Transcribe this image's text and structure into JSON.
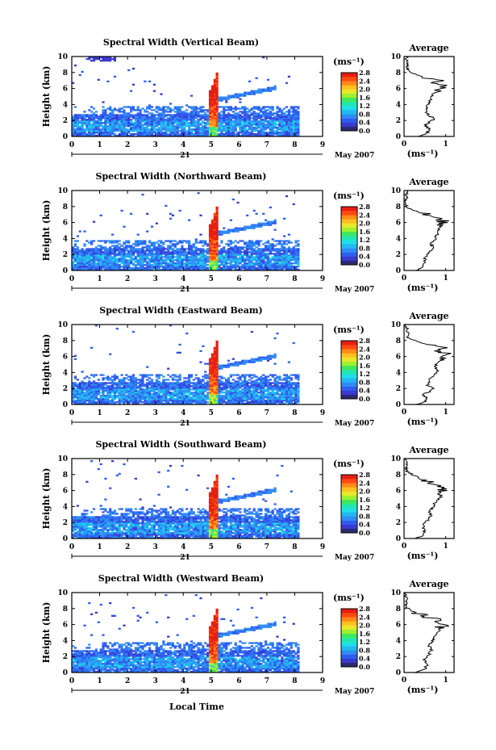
{
  "figure": {
    "xlabel": "Local Time",
    "date_day": "21",
    "date_month_year": "May 2007",
    "ylabel": "Height (km)",
    "colorbar_unit": "(ms⁻¹)",
    "avg_title": "Average",
    "avg_xlabel": "(ms⁻¹)"
  },
  "colors": {
    "scale": [
      "#2a2a6e",
      "#3a3ad0",
      "#2f5cf0",
      "#2f8cf5",
      "#22b8f0",
      "#1ee0e8",
      "#22e6b0",
      "#3ee860",
      "#9ef02e",
      "#e8e82a",
      "#ffc020",
      "#ff8a18",
      "#ff4a10",
      "#e61e12"
    ]
  },
  "chart_data": [
    {
      "type": "heatmap",
      "title": "Spectral Width (Vertical Beam)",
      "x_ticks": [
        "0",
        "1",
        "2",
        "3",
        "4",
        "5",
        "6",
        "7",
        "8",
        "9"
      ],
      "xlim": [
        0,
        9
      ],
      "y_ticks": [
        "0",
        "2",
        "4",
        "6",
        "8",
        "10"
      ],
      "ylim": [
        0,
        10
      ],
      "colorbar_ticks": [
        "0.0",
        "0.4",
        "0.8",
        "1.2",
        "1.6",
        "2.0",
        "2.4",
        "2.8"
      ],
      "colorbar_range": [
        0,
        2.8
      ],
      "avg": {
        "xlim": [
          0,
          1.2
        ],
        "x_ticks": [
          "0",
          "1"
        ],
        "ylim": [
          0,
          10
        ],
        "y_ticks": [
          "0",
          "2",
          "4",
          "6",
          "8",
          "10"
        ],
        "profile": [
          [
            0.35,
            0.0
          ],
          [
            0.55,
            0.4
          ],
          [
            0.6,
            1.0
          ],
          [
            0.5,
            1.4
          ],
          [
            0.6,
            1.8
          ],
          [
            0.75,
            2.2
          ],
          [
            0.6,
            2.6
          ],
          [
            0.55,
            3.0
          ],
          [
            0.55,
            3.6
          ],
          [
            0.6,
            4.2
          ],
          [
            0.65,
            5.0
          ],
          [
            0.75,
            5.6
          ],
          [
            0.9,
            6.0
          ],
          [
            1.0,
            6.3
          ],
          [
            0.8,
            6.6
          ],
          [
            0.9,
            7.0
          ],
          [
            0.6,
            7.3
          ],
          [
            0.4,
            7.6
          ],
          [
            0.15,
            8.0
          ],
          [
            0.1,
            8.3
          ],
          [
            0.05,
            10.0
          ]
        ]
      }
    },
    {
      "type": "heatmap",
      "title": "Spectral Width (Northward Beam)",
      "x_ticks": [
        "0",
        "1",
        "2",
        "3",
        "4",
        "5",
        "6",
        "7",
        "8",
        "9"
      ],
      "xlim": [
        0,
        9
      ],
      "y_ticks": [
        "0",
        "2",
        "4",
        "6",
        "8",
        "10"
      ],
      "ylim": [
        0,
        10
      ],
      "colorbar_ticks": [
        "0.0",
        "0.4",
        "0.8",
        "1.2",
        "1.6",
        "2.0",
        "2.4",
        "2.8"
      ],
      "colorbar_range": [
        0,
        2.8
      ],
      "avg": {
        "xlim": [
          0,
          1.2
        ],
        "x_ticks": [
          "0",
          "1"
        ],
        "ylim": [
          0,
          10
        ],
        "y_ticks": [
          "0",
          "2",
          "4",
          "6",
          "8",
          "10"
        ],
        "profile": [
          [
            0.3,
            0.0
          ],
          [
            0.45,
            0.4
          ],
          [
            0.5,
            1.0
          ],
          [
            0.5,
            1.6
          ],
          [
            0.6,
            2.2
          ],
          [
            0.7,
            2.8
          ],
          [
            0.65,
            3.4
          ],
          [
            0.75,
            4.0
          ],
          [
            0.8,
            4.6
          ],
          [
            0.85,
            5.2
          ],
          [
            0.9,
            5.8
          ],
          [
            0.95,
            6.2
          ],
          [
            0.8,
            6.6
          ],
          [
            0.6,
            7.0
          ],
          [
            0.4,
            7.3
          ],
          [
            0.2,
            7.6
          ],
          [
            0.05,
            8.0
          ],
          [
            0.05,
            10.0
          ]
        ]
      }
    },
    {
      "type": "heatmap",
      "title": "Spectral Width (Eastward Beam)",
      "x_ticks": [
        "0",
        "1",
        "2",
        "3",
        "4",
        "5",
        "6",
        "7",
        "8",
        "9"
      ],
      "xlim": [
        0,
        9
      ],
      "y_ticks": [
        "0",
        "2",
        "4",
        "6",
        "8",
        "10"
      ],
      "ylim": [
        0,
        10
      ],
      "colorbar_ticks": [
        "0.0",
        "0.4",
        "0.8",
        "1.2",
        "1.6",
        "2.0",
        "2.4",
        "2.8"
      ],
      "colorbar_range": [
        0,
        2.8
      ],
      "avg": {
        "xlim": [
          0,
          1.2
        ],
        "x_ticks": [
          "0",
          "1"
        ],
        "ylim": [
          0,
          10
        ],
        "y_ticks": [
          "0",
          "2",
          "4",
          "6",
          "8",
          "10"
        ],
        "profile": [
          [
            0.3,
            0.0
          ],
          [
            0.5,
            0.4
          ],
          [
            0.55,
            0.8
          ],
          [
            0.45,
            1.2
          ],
          [
            0.6,
            1.6
          ],
          [
            0.7,
            2.0
          ],
          [
            0.55,
            2.4
          ],
          [
            0.6,
            3.0
          ],
          [
            0.7,
            3.6
          ],
          [
            0.8,
            4.2
          ],
          [
            0.75,
            4.8
          ],
          [
            0.85,
            5.4
          ],
          [
            0.9,
            5.9
          ],
          [
            1.0,
            6.3
          ],
          [
            0.85,
            6.8
          ],
          [
            0.9,
            7.2
          ],
          [
            0.5,
            7.6
          ],
          [
            0.3,
            7.9
          ],
          [
            0.1,
            8.3
          ],
          [
            0.05,
            10.0
          ]
        ]
      }
    },
    {
      "type": "heatmap",
      "title": "Spectral Width (Southward Beam)",
      "x_ticks": [
        "0",
        "1",
        "2",
        "3",
        "4",
        "5",
        "6",
        "7",
        "8",
        "9"
      ],
      "xlim": [
        0,
        9
      ],
      "y_ticks": [
        "0",
        "2",
        "4",
        "6",
        "8",
        "10"
      ],
      "ylim": [
        0,
        10
      ],
      "colorbar_ticks": [
        "0.0",
        "0.4",
        "0.8",
        "1.2",
        "1.6",
        "2.0",
        "2.4",
        "2.8"
      ],
      "colorbar_range": [
        0,
        2.8
      ],
      "avg": {
        "xlim": [
          0,
          1.2
        ],
        "x_ticks": [
          "0",
          "1"
        ],
        "ylim": [
          0,
          10
        ],
        "y_ticks": [
          "0",
          "2",
          "4",
          "6",
          "8",
          "10"
        ],
        "profile": [
          [
            0.3,
            0.0
          ],
          [
            0.45,
            0.4
          ],
          [
            0.5,
            1.0
          ],
          [
            0.45,
            1.6
          ],
          [
            0.55,
            2.2
          ],
          [
            0.65,
            2.8
          ],
          [
            0.6,
            3.4
          ],
          [
            0.7,
            4.0
          ],
          [
            0.75,
            4.6
          ],
          [
            0.9,
            5.2
          ],
          [
            0.85,
            5.6
          ],
          [
            1.0,
            6.0
          ],
          [
            0.9,
            6.4
          ],
          [
            0.7,
            6.8
          ],
          [
            0.55,
            7.2
          ],
          [
            0.35,
            7.6
          ],
          [
            0.2,
            8.0
          ],
          [
            0.05,
            8.4
          ],
          [
            0.05,
            10.0
          ]
        ]
      }
    },
    {
      "type": "heatmap",
      "title": "Spectral Width (Westward Beam)",
      "x_ticks": [
        "0",
        "1",
        "2",
        "3",
        "4",
        "5",
        "6",
        "7",
        "8",
        "9"
      ],
      "xlim": [
        0,
        9
      ],
      "y_ticks": [
        "0",
        "2",
        "4",
        "6",
        "8",
        "10"
      ],
      "ylim": [
        0,
        10
      ],
      "colorbar_ticks": [
        "0.0",
        "0.4",
        "0.8",
        "1.2",
        "1.6",
        "2.0",
        "2.4",
        "2.8"
      ],
      "colorbar_range": [
        0,
        2.8
      ],
      "avg": {
        "xlim": [
          0,
          1.2
        ],
        "x_ticks": [
          "0",
          "1"
        ],
        "ylim": [
          0,
          10
        ],
        "y_ticks": [
          "0",
          "2",
          "4",
          "6",
          "8",
          "10"
        ],
        "profile": [
          [
            0.3,
            0.0
          ],
          [
            0.5,
            0.4
          ],
          [
            0.55,
            1.0
          ],
          [
            0.5,
            1.6
          ],
          [
            0.6,
            2.2
          ],
          [
            0.65,
            2.8
          ],
          [
            0.6,
            3.4
          ],
          [
            0.7,
            4.0
          ],
          [
            0.75,
            4.6
          ],
          [
            0.85,
            5.2
          ],
          [
            0.9,
            5.8
          ],
          [
            0.95,
            6.2
          ],
          [
            0.8,
            6.6
          ],
          [
            0.5,
            7.0
          ],
          [
            0.3,
            7.4
          ],
          [
            0.15,
            7.8
          ],
          [
            0.05,
            8.2
          ],
          [
            0.05,
            10.0
          ]
        ]
      }
    }
  ]
}
